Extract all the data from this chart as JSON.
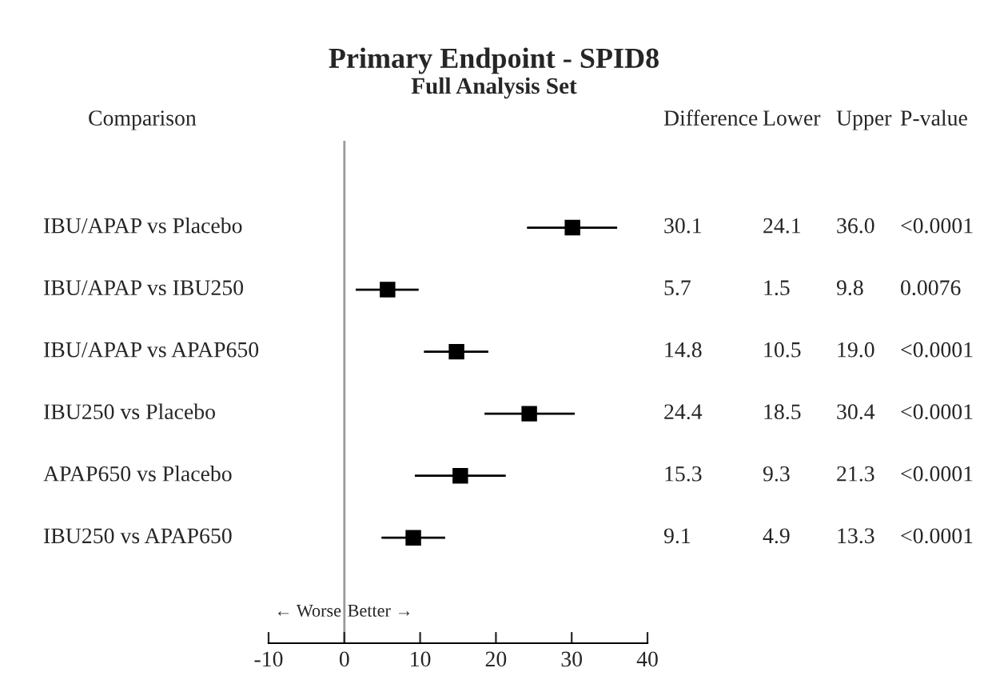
{
  "chart_data": {
    "type": "scatter",
    "orientation": "horizontal",
    "title": "Primary Endpoint - SPID8",
    "subtitle": "Full Analysis Set",
    "ylabel": "Comparison",
    "categories": [
      "IBU/APAP vs Placebo",
      "IBU/APAP vs IBU250",
      "IBU/APAP vs APAP650",
      "IBU250 vs Placebo",
      "APAP650 vs Placebo",
      "IBU250 vs APAP650"
    ],
    "series": [
      {
        "color": "#000000",
        "values": [
          30.1,
          5.7,
          14.8,
          24.4,
          15.3,
          9.1
        ],
        "errors": [
          [
            24.1,
            36.0
          ],
          [
            1.5,
            9.8
          ],
          [
            10.5,
            19.0
          ],
          [
            18.5,
            30.4
          ],
          [
            9.3,
            21.3
          ],
          [
            4.9,
            13.3
          ]
        ]
      }
    ],
    "marker": "square",
    "xlim": [
      -10,
      40
    ],
    "xticks": [
      -10,
      0,
      10,
      20,
      30,
      40
    ],
    "tick_labels": "x",
    "ref_lines": [
      {
        "axis": "x",
        "value": 0,
        "color": "#999999"
      }
    ],
    "annotations": [
      "← Worse",
      "Better →",
      "Difference",
      "Lower",
      "Upper",
      "P-value",
      "30.1",
      "24.1",
      "36.0",
      "<0.0001",
      "5.7",
      "1.5",
      "9.8",
      "0.0076",
      "14.8",
      "10.5",
      "19.0",
      "<0.0001",
      "24.4",
      "18.5",
      "30.4",
      "<0.0001",
      "15.3",
      "9.3",
      "21.3",
      "<0.0001",
      "9.1",
      "4.9",
      "13.3",
      "<0.0001"
    ]
  }
}
